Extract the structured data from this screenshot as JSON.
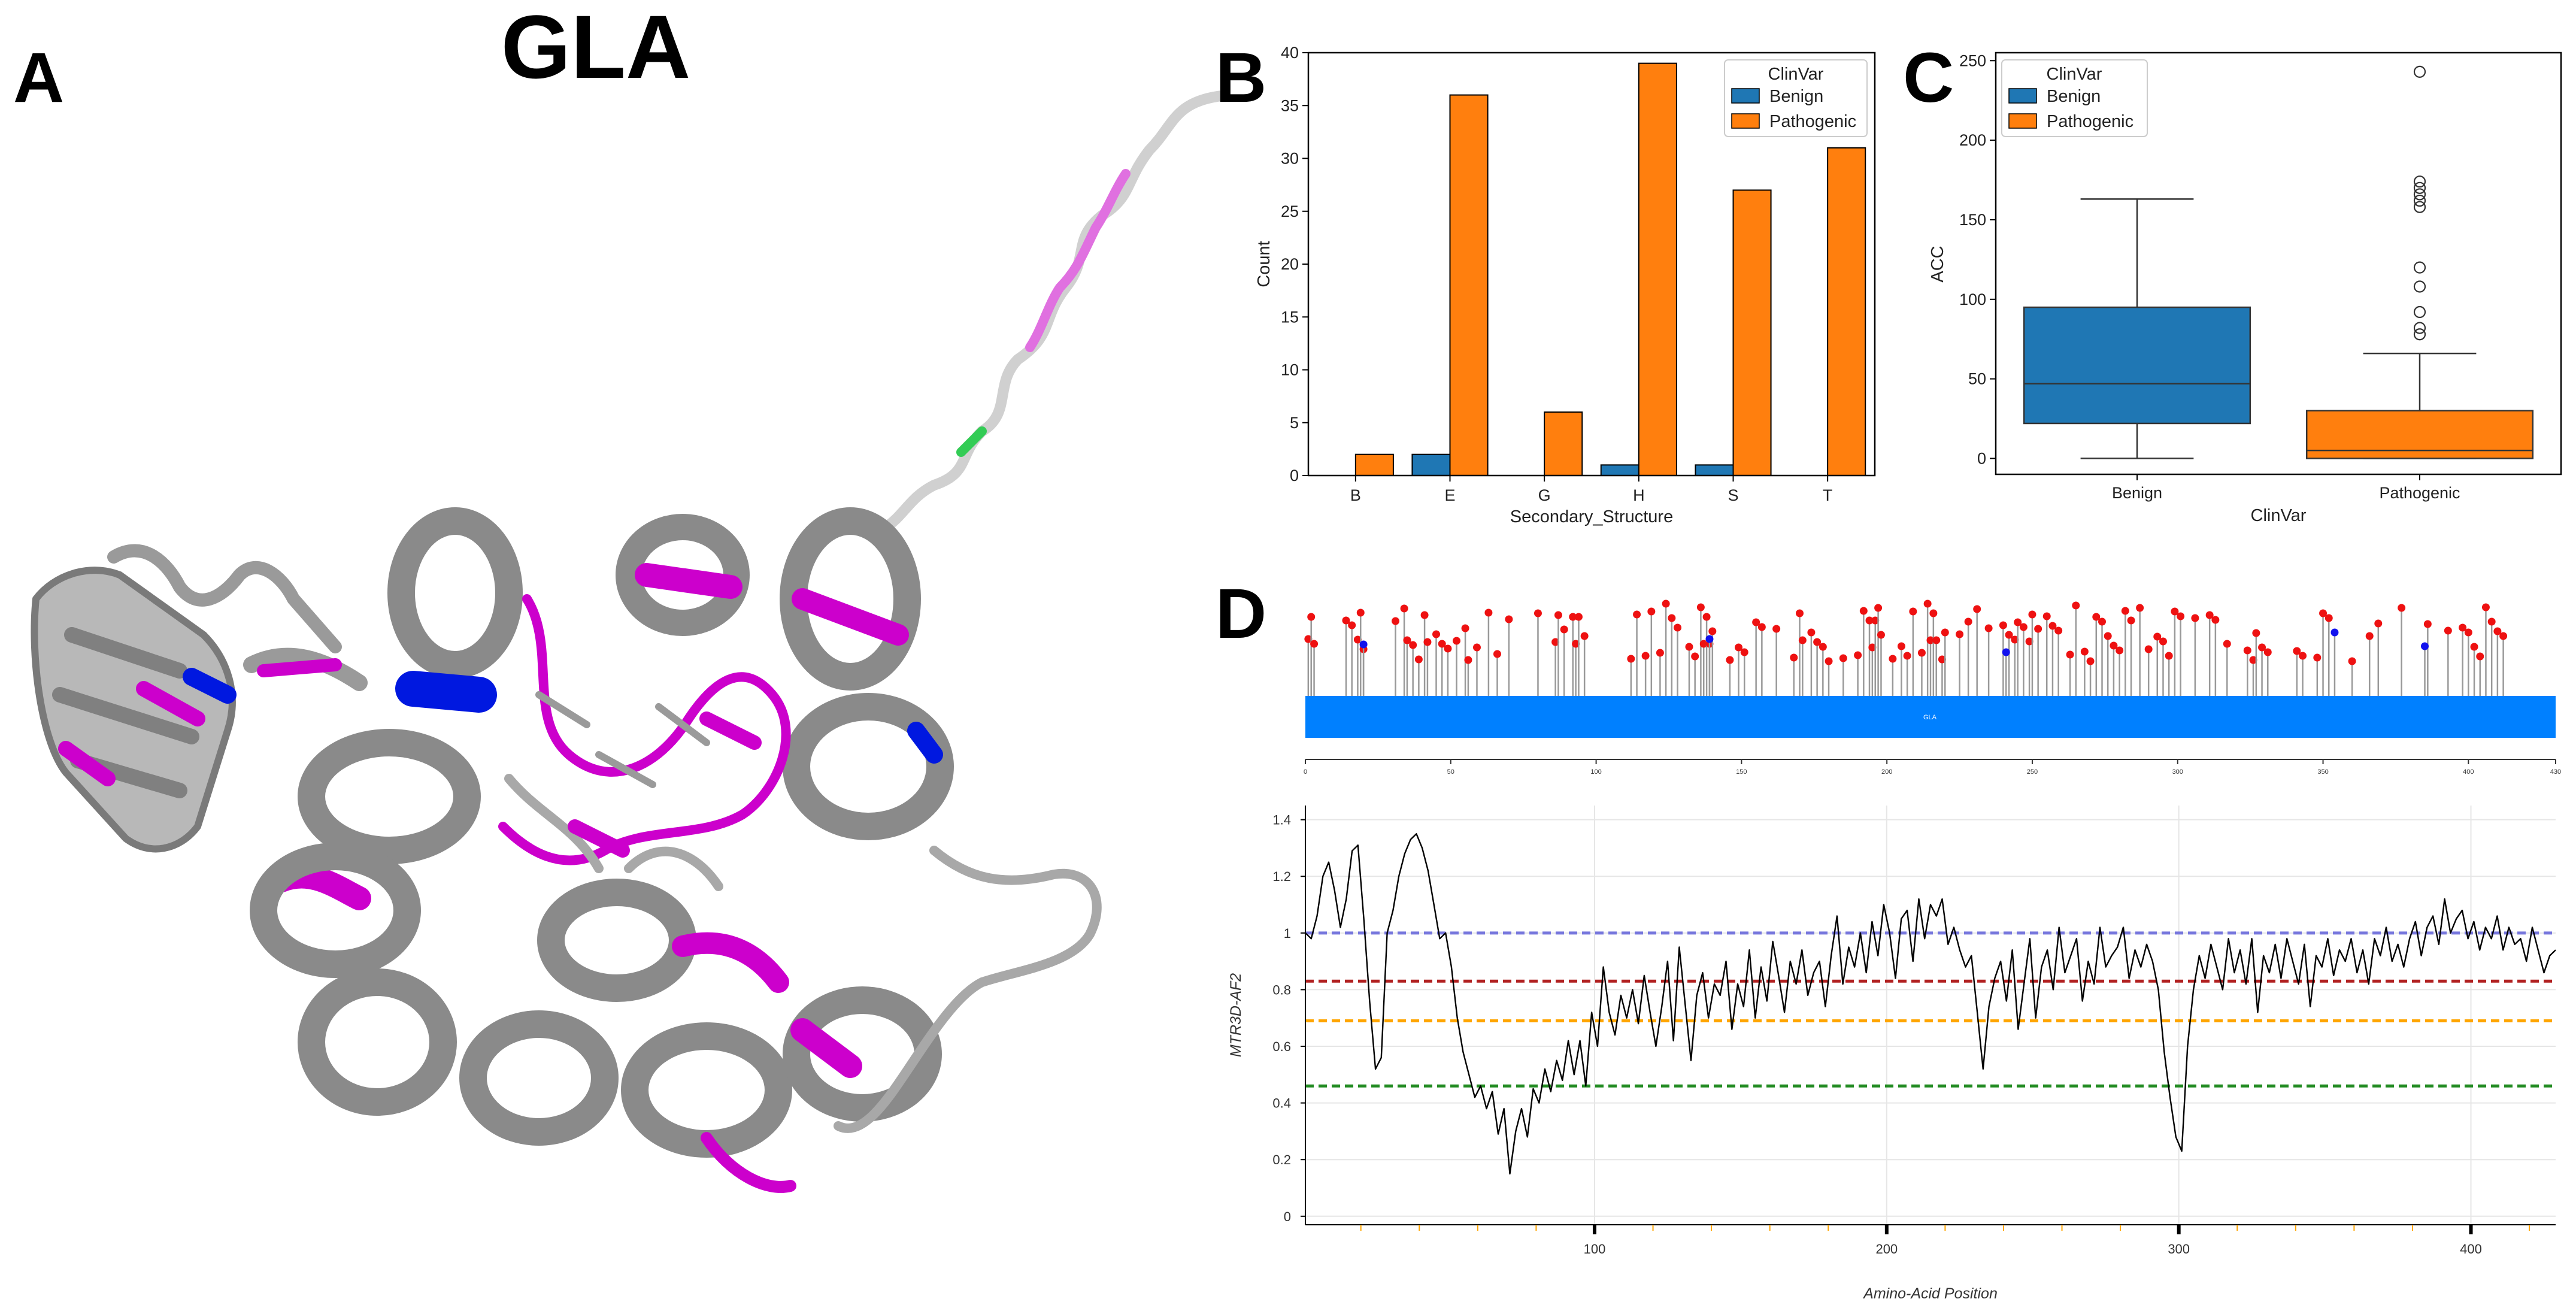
{
  "figure": {
    "panel_labels": [
      "A",
      "B",
      "C",
      "D"
    ],
    "protein_title": "GLA"
  },
  "structure": {
    "colors": {
      "backbone": "#8c8c8c",
      "light": "#c8c8c8",
      "pathogenic": "#e000e0",
      "benign": "#0018e0",
      "other": "#22cc44"
    }
  },
  "chart_data": [
    {
      "id": "B",
      "type": "bar",
      "title": "",
      "xlabel": "Secondary_Structure",
      "ylabel": "Count",
      "ylim": [
        0,
        40
      ],
      "yticks": [
        0,
        5,
        10,
        15,
        20,
        25,
        30,
        35,
        40
      ],
      "categories": [
        "B",
        "E",
        "G",
        "H",
        "S",
        "T"
      ],
      "series": [
        {
          "name": "Benign",
          "color": "#1f77b4",
          "values": [
            0,
            2,
            0,
            1,
            1,
            0
          ]
        },
        {
          "name": "Pathogenic",
          "color": "#ff7f0e",
          "values": [
            2,
            36,
            6,
            39,
            27,
            31
          ]
        }
      ],
      "legend": {
        "title": "ClinVar",
        "position": "top-right"
      }
    },
    {
      "id": "C",
      "type": "box",
      "title": "",
      "xlabel": "ClinVar",
      "ylabel": "ACC",
      "ylim": [
        -10,
        255
      ],
      "yticks": [
        0,
        50,
        100,
        150,
        200,
        250
      ],
      "categories": [
        "Benign",
        "Pathogenic"
      ],
      "boxes": [
        {
          "name": "Benign",
          "color": "#1f77b4",
          "whisker_low": 0,
          "q1": 22,
          "median": 47,
          "q3": 95,
          "whisker_high": 163,
          "outliers": []
        },
        {
          "name": "Pathogenic",
          "color": "#ff7f0e",
          "whisker_low": 0,
          "q1": 0,
          "median": 5,
          "q3": 30,
          "whisker_high": 66,
          "outliers": [
            78,
            82,
            92,
            108,
            120,
            158,
            162,
            166,
            170,
            174,
            243
          ]
        }
      ],
      "legend": {
        "title": "ClinVar",
        "entries": [
          "Benign",
          "Pathogenic"
        ],
        "position": "top-left"
      }
    },
    {
      "id": "D-lollipop",
      "type": "lollipop",
      "xlim": [
        0,
        430
      ],
      "xticks": [
        0,
        50,
        100,
        150,
        200,
        250,
        300,
        350,
        400,
        430
      ],
      "domain_label": "GLA",
      "domain_color": "#0080ff",
      "pathogenic_color": "#ee1111",
      "benign_color": "#1111ee",
      "pathogenic_positions": [
        1,
        2,
        3,
        14,
        16,
        18,
        19,
        20,
        31,
        34,
        35,
        37,
        39,
        41,
        42,
        45,
        47,
        49,
        52,
        55,
        56,
        59,
        63,
        66,
        70,
        80,
        86,
        87,
        89,
        92,
        93,
        94,
        96,
        112,
        114,
        117,
        119,
        122,
        124,
        126,
        128,
        132,
        134,
        136,
        137,
        138,
        139,
        140,
        146,
        149,
        151,
        155,
        157,
        162,
        168,
        170,
        171,
        174,
        176,
        178,
        180,
        185,
        190,
        192,
        194,
        195,
        196,
        197,
        198,
        202,
        205,
        207,
        209,
        212,
        214,
        215,
        216,
        217,
        219,
        220,
        225,
        228,
        231,
        235,
        240,
        242,
        244,
        245,
        247,
        249,
        250,
        252,
        255,
        257,
        259,
        263,
        265,
        268,
        270,
        272,
        274,
        276,
        278,
        280,
        282,
        284,
        287,
        290,
        293,
        295,
        297,
        299,
        301,
        306,
        311,
        313,
        317,
        324,
        326,
        327,
        329,
        331,
        341,
        343,
        348,
        350,
        352,
        360,
        366,
        369,
        377,
        386,
        393,
        398,
        400,
        402,
        404,
        406,
        408,
        410,
        412
      ],
      "benign_positions": [
        20,
        139,
        241,
        354,
        385
      ]
    },
    {
      "id": "D-line",
      "type": "line",
      "xlabel": "Amino-Acid Position",
      "ylabel": "MTR3D-AF2",
      "xlim": [
        1,
        429
      ],
      "ylim": [
        -0.03,
        1.45
      ],
      "xticks": [
        100,
        200,
        300,
        400
      ],
      "yticks": [
        0,
        0.2,
        0.4,
        0.6,
        0.8,
        1,
        1.2,
        1.4
      ],
      "reference_lines": [
        {
          "y": 1.0,
          "color": "#7777dd"
        },
        {
          "y": 0.83,
          "color": "#b22222"
        },
        {
          "y": 0.69,
          "color": "#ffa500"
        },
        {
          "y": 0.46,
          "color": "#228b22"
        }
      ],
      "points": [
        [
          1,
          1.0
        ],
        [
          3,
          0.98
        ],
        [
          5,
          1.06
        ],
        [
          7,
          1.2
        ],
        [
          9,
          1.25
        ],
        [
          11,
          1.15
        ],
        [
          13,
          1.02
        ],
        [
          15,
          1.12
        ],
        [
          17,
          1.29
        ],
        [
          19,
          1.31
        ],
        [
          21,
          1.05
        ],
        [
          23,
          0.76
        ],
        [
          25,
          0.52
        ],
        [
          27,
          0.56
        ],
        [
          29,
          1.0
        ],
        [
          31,
          1.08
        ],
        [
          33,
          1.2
        ],
        [
          35,
          1.28
        ],
        [
          37,
          1.33
        ],
        [
          39,
          1.35
        ],
        [
          41,
          1.3
        ],
        [
          43,
          1.22
        ],
        [
          45,
          1.1
        ],
        [
          47,
          0.98
        ],
        [
          49,
          1.0
        ],
        [
          51,
          0.88
        ],
        [
          53,
          0.7
        ],
        [
          55,
          0.58
        ],
        [
          57,
          0.5
        ],
        [
          59,
          0.42
        ],
        [
          61,
          0.46
        ],
        [
          63,
          0.38
        ],
        [
          65,
          0.44
        ],
        [
          67,
          0.29
        ],
        [
          69,
          0.38
        ],
        [
          71,
          0.15
        ],
        [
          73,
          0.3
        ],
        [
          75,
          0.38
        ],
        [
          77,
          0.28
        ],
        [
          79,
          0.45
        ],
        [
          81,
          0.4
        ],
        [
          83,
          0.52
        ],
        [
          85,
          0.44
        ],
        [
          87,
          0.55
        ],
        [
          89,
          0.48
        ],
        [
          91,
          0.62
        ],
        [
          93,
          0.5
        ],
        [
          95,
          0.62
        ],
        [
          97,
          0.46
        ],
        [
          99,
          0.72
        ],
        [
          101,
          0.6
        ],
        [
          103,
          0.88
        ],
        [
          105,
          0.72
        ],
        [
          107,
          0.64
        ],
        [
          109,
          0.78
        ],
        [
          111,
          0.7
        ],
        [
          113,
          0.8
        ],
        [
          115,
          0.68
        ],
        [
          117,
          0.85
        ],
        [
          119,
          0.72
        ],
        [
          121,
          0.6
        ],
        [
          123,
          0.74
        ],
        [
          125,
          0.9
        ],
        [
          127,
          0.62
        ],
        [
          129,
          0.95
        ],
        [
          131,
          0.75
        ],
        [
          133,
          0.55
        ],
        [
          135,
          0.78
        ],
        [
          137,
          0.86
        ],
        [
          139,
          0.7
        ],
        [
          141,
          0.82
        ],
        [
          143,
          0.78
        ],
        [
          145,
          0.9
        ],
        [
          147,
          0.66
        ],
        [
          149,
          0.82
        ],
        [
          151,
          0.74
        ],
        [
          153,
          0.94
        ],
        [
          155,
          0.7
        ],
        [
          157,
          0.88
        ],
        [
          159,
          0.76
        ],
        [
          161,
          0.97
        ],
        [
          163,
          0.85
        ],
        [
          165,
          0.72
        ],
        [
          167,
          0.9
        ],
        [
          169,
          0.82
        ],
        [
          171,
          0.94
        ],
        [
          173,
          0.78
        ],
        [
          175,
          0.86
        ],
        [
          177,
          0.9
        ],
        [
          179,
          0.74
        ],
        [
          181,
          0.92
        ],
        [
          183,
          1.06
        ],
        [
          185,
          0.82
        ],
        [
          187,
          0.95
        ],
        [
          189,
          0.88
        ],
        [
          191,
          1.0
        ],
        [
          193,
          0.86
        ],
        [
          195,
          1.04
        ],
        [
          197,
          0.92
        ],
        [
          199,
          1.1
        ],
        [
          201,
          1.0
        ],
        [
          203,
          0.84
        ],
        [
          205,
          1.05
        ],
        [
          207,
          1.08
        ],
        [
          209,
          0.9
        ],
        [
          211,
          1.12
        ],
        [
          213,
          0.98
        ],
        [
          215,
          1.1
        ],
        [
          217,
          1.06
        ],
        [
          219,
          1.12
        ],
        [
          221,
          0.96
        ],
        [
          223,
          1.02
        ],
        [
          225,
          0.94
        ],
        [
          227,
          0.88
        ],
        [
          229,
          0.92
        ],
        [
          231,
          0.72
        ],
        [
          233,
          0.52
        ],
        [
          235,
          0.74
        ],
        [
          237,
          0.84
        ],
        [
          239,
          0.9
        ],
        [
          241,
          0.76
        ],
        [
          243,
          0.94
        ],
        [
          245,
          0.66
        ],
        [
          247,
          0.82
        ],
        [
          249,
          0.98
        ],
        [
          251,
          0.7
        ],
        [
          253,
          0.88
        ],
        [
          255,
          0.94
        ],
        [
          257,
          0.8
        ],
        [
          259,
          1.02
        ],
        [
          261,
          0.86
        ],
        [
          263,
          0.92
        ],
        [
          265,
          0.98
        ],
        [
          267,
          0.76
        ],
        [
          269,
          0.9
        ],
        [
          271,
          0.82
        ],
        [
          273,
          1.02
        ],
        [
          275,
          0.88
        ],
        [
          277,
          0.92
        ],
        [
          279,
          0.95
        ],
        [
          281,
          1.02
        ],
        [
          283,
          0.84
        ],
        [
          285,
          0.94
        ],
        [
          287,
          0.88
        ],
        [
          289,
          0.96
        ],
        [
          291,
          0.9
        ],
        [
          293,
          0.8
        ],
        [
          295,
          0.58
        ],
        [
          297,
          0.42
        ],
        [
          299,
          0.28
        ],
        [
          301,
          0.23
        ],
        [
          303,
          0.6
        ],
        [
          305,
          0.8
        ],
        [
          307,
          0.92
        ],
        [
          309,
          0.84
        ],
        [
          311,
          0.96
        ],
        [
          313,
          0.88
        ],
        [
          315,
          0.8
        ],
        [
          317,
          0.98
        ],
        [
          319,
          0.86
        ],
        [
          321,
          0.94
        ],
        [
          323,
          0.82
        ],
        [
          325,
          0.98
        ],
        [
          327,
          0.72
        ],
        [
          329,
          0.92
        ],
        [
          331,
          0.86
        ],
        [
          333,
          0.96
        ],
        [
          335,
          0.84
        ],
        [
          337,
          0.98
        ],
        [
          339,
          0.9
        ],
        [
          341,
          0.82
        ],
        [
          343,
          0.96
        ],
        [
          345,
          0.74
        ],
        [
          347,
          0.92
        ],
        [
          349,
          0.88
        ],
        [
          351,
          0.98
        ],
        [
          353,
          0.85
        ],
        [
          355,
          0.94
        ],
        [
          357,
          0.9
        ],
        [
          359,
          0.98
        ],
        [
          361,
          0.86
        ],
        [
          363,
          0.94
        ],
        [
          365,
          0.82
        ],
        [
          367,
          0.98
        ],
        [
          369,
          0.92
        ],
        [
          371,
          1.02
        ],
        [
          373,
          0.9
        ],
        [
          375,
          0.96
        ],
        [
          377,
          0.88
        ],
        [
          379,
          0.98
        ],
        [
          381,
          1.04
        ],
        [
          383,
          0.92
        ],
        [
          385,
          1.02
        ],
        [
          387,
          1.06
        ],
        [
          389,
          0.96
        ],
        [
          391,
          1.12
        ],
        [
          393,
          1.0
        ],
        [
          395,
          1.05
        ],
        [
          397,
          1.08
        ],
        [
          399,
          0.98
        ],
        [
          401,
          1.04
        ],
        [
          403,
          0.94
        ],
        [
          405,
          1.02
        ],
        [
          407,
          0.98
        ],
        [
          409,
          1.06
        ],
        [
          411,
          0.94
        ],
        [
          413,
          1.02
        ],
        [
          415,
          0.96
        ],
        [
          417,
          0.98
        ],
        [
          419,
          0.9
        ],
        [
          421,
          1.02
        ],
        [
          423,
          0.94
        ],
        [
          425,
          0.86
        ],
        [
          427,
          0.92
        ],
        [
          429,
          0.94
        ]
      ]
    }
  ]
}
